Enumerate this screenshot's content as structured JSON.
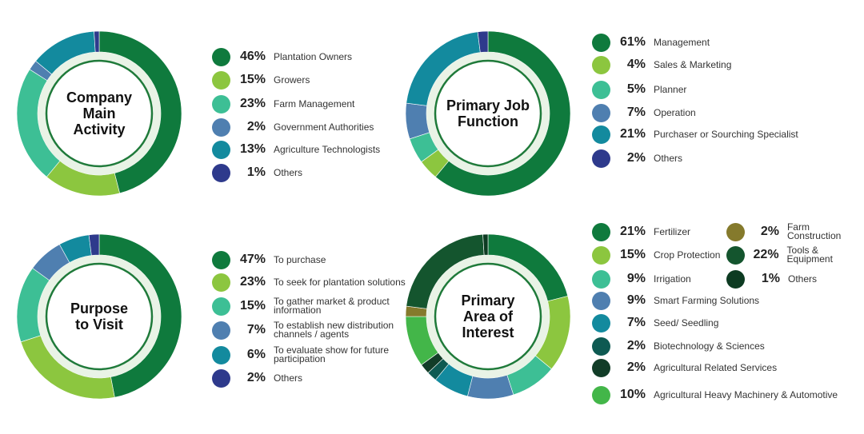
{
  "chart_data": [
    {
      "type": "pie",
      "title": "Company Main Activity",
      "title_lines": [
        "Company",
        "Main",
        "Activity"
      ],
      "categories": [
        "Plantation Owners",
        "Growers",
        "Farm Management",
        "Government Authorities",
        "Agriculture Technologists",
        "Others"
      ],
      "values": [
        46,
        15,
        23,
        2,
        13,
        1
      ],
      "labels": [
        "46%",
        "15%",
        "23%",
        "2%",
        "13%",
        "1%"
      ],
      "colors": [
        "#0f7a3d",
        "#8cc63f",
        "#3dbf95",
        "#4f7fb0",
        "#138a9e",
        "#2e3a8c"
      ]
    },
    {
      "type": "pie",
      "title": "Primary Job Function",
      "title_lines": [
        "Primary Job",
        "Function"
      ],
      "categories": [
        "Management",
        "Sales & Marketing",
        "Planner",
        "Operation",
        "Purchaser or Sourching Specialist",
        "Others"
      ],
      "values": [
        61,
        4,
        5,
        7,
        21,
        2
      ],
      "labels": [
        "61%",
        "4%",
        "5%",
        "7%",
        "21%",
        "2%"
      ],
      "colors": [
        "#0f7a3d",
        "#8cc63f",
        "#3dbf95",
        "#4f7fb0",
        "#138a9e",
        "#2e3a8c"
      ]
    },
    {
      "type": "pie",
      "title": "Purpose to Visit",
      "title_lines": [
        "Purpose",
        "to Visit"
      ],
      "categories": [
        "To purchase",
        "To seek for plantation solutions",
        "To gather market & product information",
        "To establish new distribution channels / agents",
        "To evaluate show for future participation",
        "Others"
      ],
      "category_lines": [
        [
          "To purchase"
        ],
        [
          "To seek for plantation solutions"
        ],
        [
          "To gather market & product",
          "information"
        ],
        [
          "To establish new distribution",
          "channels / agents"
        ],
        [
          "To evaluate show for future",
          "participation"
        ],
        [
          "Others"
        ]
      ],
      "values": [
        47,
        23,
        15,
        7,
        6,
        2
      ],
      "labels": [
        "47%",
        "23%",
        "15%",
        "7%",
        "6%",
        "2%"
      ],
      "colors": [
        "#0f7a3d",
        "#8cc63f",
        "#3dbf95",
        "#4f7fb0",
        "#138a9e",
        "#2e3a8c"
      ]
    },
    {
      "type": "pie",
      "title": "Primary Area of Interest",
      "title_lines": [
        "Primary",
        "Area of",
        "Interest"
      ],
      "categories": [
        "Fertilizer",
        "Crop Protection",
        "Irrigation",
        "Smart Farming Solutions",
        "Seed/ Seedling",
        "Biotechnology & Sciences",
        "Agricultural Related Services",
        "Agricultural Heavy Machinery & Automotive",
        "Farm Construction",
        "Tools & Equipment",
        "Others"
      ],
      "values": [
        21,
        15,
        9,
        9,
        7,
        2,
        2,
        10,
        2,
        22,
        1
      ],
      "labels": [
        "21%",
        "15%",
        "9%",
        "9%",
        "7%",
        "2%",
        "2%",
        "10%",
        "2%",
        "22%",
        "1%"
      ],
      "colors": [
        "#0f7a3d",
        "#8cc63f",
        "#3dbf95",
        "#4f7fb0",
        "#138a9e",
        "#0e5a52",
        "#123d28",
        "#43b649",
        "#857a2c",
        "#14552e",
        "#0d3b22"
      ]
    }
  ]
}
